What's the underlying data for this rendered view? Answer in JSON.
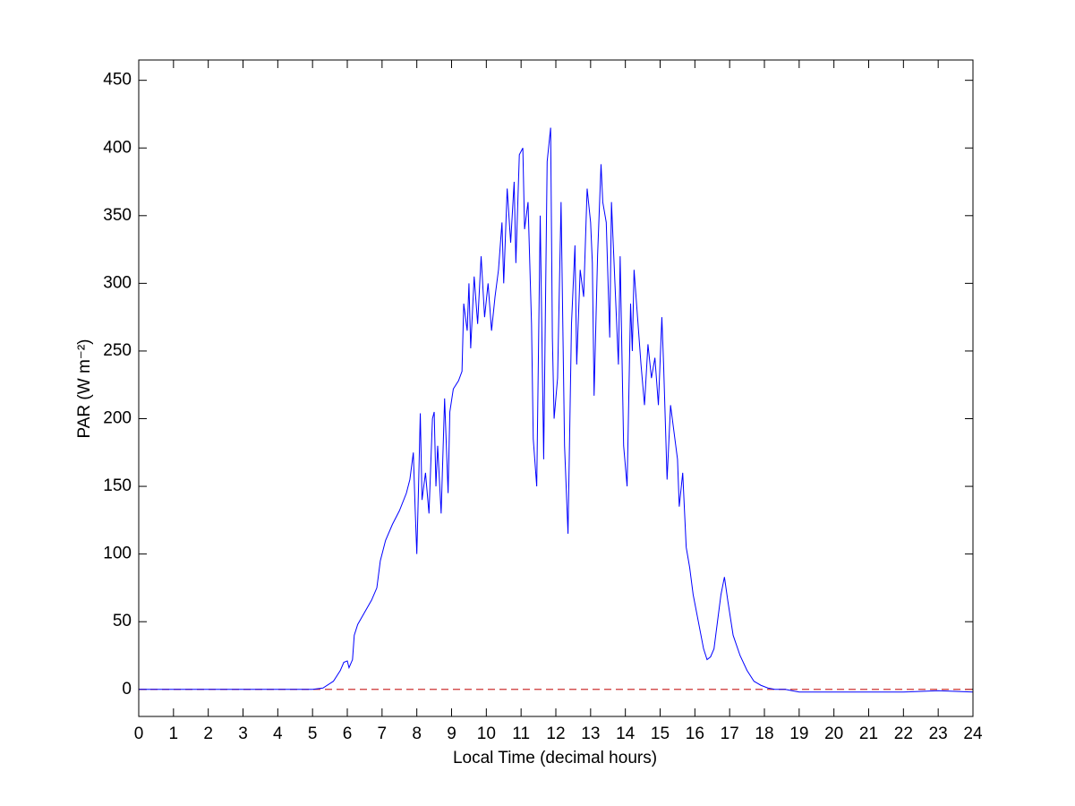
{
  "chart_data": {
    "type": "line",
    "xlabel": "Local Time (decimal hours)",
    "ylabel": "PAR (W m⁻²)",
    "x": [
      0,
      5,
      5.3,
      5.6,
      5.8,
      5.9,
      6.0,
      6.05,
      6.15,
      6.2,
      6.3,
      6.5,
      6.7,
      6.85,
      6.95,
      7.1,
      7.3,
      7.5,
      7.7,
      7.8,
      7.9,
      7.95,
      8.0,
      8.05,
      8.1,
      8.15,
      8.25,
      8.35,
      8.45,
      8.5,
      8.55,
      8.6,
      8.7,
      8.8,
      8.9,
      8.95,
      9.05,
      9.2,
      9.3,
      9.35,
      9.45,
      9.5,
      9.55,
      9.65,
      9.75,
      9.85,
      9.95,
      10.05,
      10.15,
      10.25,
      10.35,
      10.45,
      10.5,
      10.6,
      10.7,
      10.8,
      10.85,
      10.95,
      11.05,
      11.1,
      11.2,
      11.3,
      11.35,
      11.45,
      11.55,
      11.65,
      11.75,
      11.85,
      11.9,
      11.95,
      12.05,
      12.15,
      12.25,
      12.35,
      12.45,
      12.55,
      12.6,
      12.7,
      12.8,
      12.9,
      13.0,
      13.05,
      13.1,
      13.2,
      13.3,
      13.35,
      13.45,
      13.55,
      13.6,
      13.7,
      13.8,
      13.85,
      13.95,
      14.05,
      14.15,
      14.2,
      14.25,
      14.35,
      14.45,
      14.55,
      14.65,
      14.75,
      14.85,
      14.95,
      15.05,
      15.1,
      15.2,
      15.3,
      15.4,
      15.5,
      15.55,
      15.65,
      15.75,
      15.85,
      15.95,
      16.1,
      16.25,
      16.35,
      16.45,
      16.55,
      16.65,
      16.75,
      16.85,
      16.95,
      17.1,
      17.3,
      17.5,
      17.7,
      17.9,
      18.1,
      18.3,
      18.6,
      19,
      20,
      21,
      22,
      23,
      24
    ],
    "series": [
      {
        "color": "#0000ff",
        "values": [
          0,
          0,
          1,
          6,
          14,
          20,
          21,
          16,
          22,
          40,
          48,
          57,
          66,
          75,
          95,
          110,
          122,
          132,
          145,
          155,
          175,
          135,
          100,
          150,
          204,
          140,
          160,
          130,
          200,
          205,
          150,
          180,
          130,
          215,
          145,
          205,
          222,
          228,
          235,
          285,
          265,
          300,
          252,
          305,
          270,
          320,
          275,
          300,
          265,
          290,
          310,
          345,
          300,
          370,
          330,
          375,
          315,
          395,
          400,
          340,
          360,
          270,
          185,
          150,
          350,
          170,
          390,
          415,
          260,
          200,
          230,
          360,
          180,
          115,
          270,
          328,
          240,
          310,
          290,
          370,
          345,
          315,
          217,
          320,
          388,
          360,
          345,
          260,
          360,
          300,
          240,
          320,
          180,
          150,
          285,
          250,
          310,
          275,
          240,
          210,
          255,
          230,
          245,
          210,
          275,
          240,
          155,
          210,
          190,
          170,
          135,
          160,
          105,
          90,
          70,
          50,
          30,
          22,
          24,
          30,
          50,
          70,
          83,
          65,
          40,
          25,
          14,
          6,
          3,
          1,
          0,
          0,
          -2,
          -2,
          -2,
          -2,
          -1,
          -2
        ]
      }
    ],
    "hlines": [
      {
        "value": 0,
        "color": "#cc3333",
        "style": "dashed"
      }
    ],
    "xlim": [
      0,
      24
    ],
    "xticks": [
      0,
      1,
      2,
      3,
      4,
      5,
      6,
      7,
      8,
      9,
      10,
      11,
      12,
      13,
      14,
      15,
      16,
      17,
      18,
      19,
      20,
      21,
      22,
      23,
      24
    ],
    "ylim": [
      -20,
      465
    ],
    "yticks": [
      0,
      50,
      100,
      150,
      200,
      250,
      300,
      350,
      400,
      450
    ],
    "grid": false
  }
}
